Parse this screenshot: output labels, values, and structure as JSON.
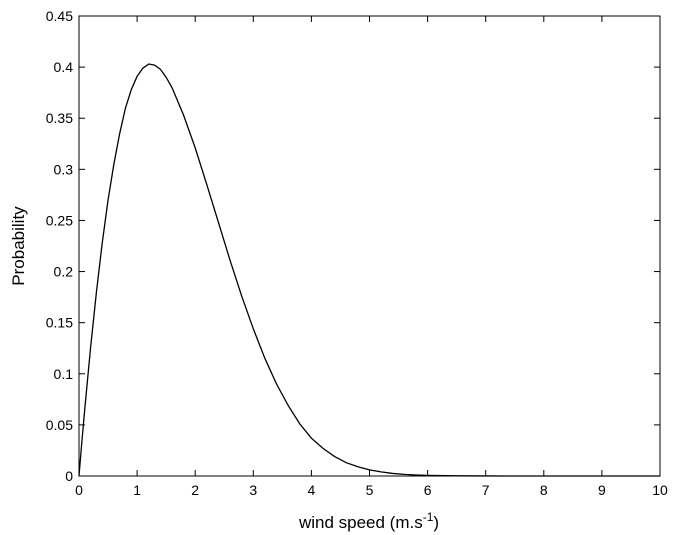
{
  "chart_data": {
    "type": "line",
    "title": "",
    "xlabel": "wind speed (m.s",
    "xlabel_superscript": "-1",
    "xlabel_suffix": ")",
    "ylabel": "Probability",
    "xlim": [
      0,
      10
    ],
    "ylim": [
      0,
      0.45
    ],
    "xticks": [
      0,
      1,
      2,
      3,
      4,
      5,
      6,
      7,
      8,
      9,
      10
    ],
    "yticks": [
      0,
      0.05,
      0.1,
      0.15,
      0.2,
      0.25,
      0.3,
      0.35,
      0.4,
      0.45
    ],
    "grid": false,
    "legend": "none",
    "line_color": "#000000",
    "series": [
      {
        "x": [
          0,
          0.05,
          0.1,
          0.2,
          0.3,
          0.4,
          0.5,
          0.6,
          0.7,
          0.8,
          0.9,
          1.0,
          1.1,
          1.2,
          1.3,
          1.4,
          1.5,
          1.6,
          1.8,
          2.0,
          2.2,
          2.4,
          2.6,
          2.8,
          3.0,
          3.2,
          3.4,
          3.6,
          3.8,
          4.0,
          4.2,
          4.4,
          4.6,
          4.8,
          5.0,
          5.2,
          5.4,
          5.6,
          5.8,
          6.0,
          6.5,
          7.0,
          8.0,
          9.0,
          10.0
        ],
        "values": [
          0,
          0.034,
          0.066,
          0.126,
          0.18,
          0.228,
          0.27,
          0.305,
          0.335,
          0.36,
          0.378,
          0.391,
          0.399,
          0.403,
          0.402,
          0.398,
          0.39,
          0.38,
          0.353,
          0.321,
          0.285,
          0.248,
          0.211,
          0.176,
          0.144,
          0.115,
          0.09,
          0.069,
          0.051,
          0.037,
          0.027,
          0.019,
          0.013,
          0.009,
          0.006,
          0.004,
          0.0025,
          0.0016,
          0.001,
          0.0006,
          0.0002,
          5e-05,
          0,
          0,
          0
        ]
      }
    ]
  }
}
